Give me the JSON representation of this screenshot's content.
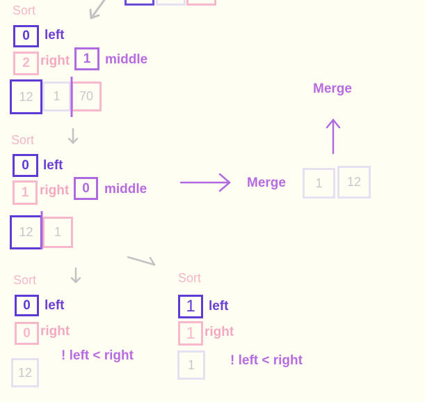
{
  "colors": {
    "background": "#fffef2",
    "left_accent": "#5d3bd4",
    "right_accent": "#f7b8cb",
    "middle_accent": "#b06ae0",
    "cell_border": "#e7dff2",
    "arrow_gray": "#c2c2c2"
  },
  "labels": {
    "sort": "Sort",
    "left": "left",
    "right": "right",
    "middle": "middle",
    "merge": "Merge",
    "condition": "! left < right"
  },
  "step1": {
    "left_value": "0",
    "right_value": "2",
    "middle_value": "1",
    "cells": [
      "12",
      "1",
      "70"
    ]
  },
  "step2": {
    "left_value": "0",
    "right_value": "1",
    "middle_value": "0",
    "cells": [
      "12",
      "1"
    ]
  },
  "merge_result": {
    "cells": [
      "1",
      "12"
    ]
  },
  "step3_left": {
    "left_value": "0",
    "right_value": "0",
    "cells": [
      "12"
    ]
  },
  "step3_right": {
    "left_value": "1",
    "right_value": "1",
    "cells": [
      "1"
    ]
  }
}
